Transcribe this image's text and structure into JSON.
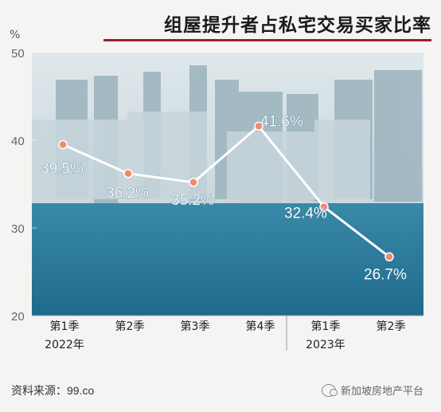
{
  "title": "组屋提升者占私宅交易买家比率",
  "unit": "%",
  "source": "资料来源：99.co",
  "watermark": "新加坡房地产平台",
  "colors": {
    "line": "#ffffff",
    "marker": "#f08a6a",
    "title_rule": "#9b1c2e",
    "panel": "#2f7f9f"
  },
  "chart_data": {
    "type": "line",
    "title": "组屋提升者占私宅交易买家比率",
    "ylabel": "%",
    "ylim": [
      20,
      50
    ],
    "yticks": [
      "20",
      "30",
      "40",
      "50"
    ],
    "categories": [
      "第1季",
      "第2季",
      "第3季",
      "第4季",
      "第1季",
      "第2季"
    ],
    "year_labels": [
      "2022年",
      "2023年"
    ],
    "values": [
      39.5,
      36.2,
      35.2,
      41.6,
      32.4,
      26.7
    ],
    "value_labels": [
      "39.5%",
      "36.2%",
      "35.2%",
      "41.6%",
      "32.4%",
      "26.7%"
    ],
    "grid": false
  }
}
